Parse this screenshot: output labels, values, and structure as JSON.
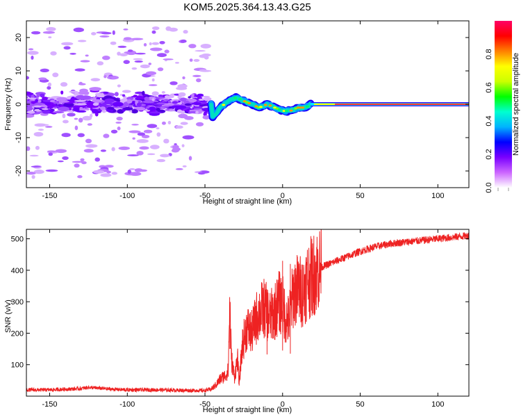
{
  "title": "KOM5.2025.364.13.43.G25",
  "chart_data": [
    {
      "id": "spectrogram",
      "type": "heatmap",
      "xlabel": "Height of straight line (km)",
      "ylabel": "Frequency (Hz)",
      "xlim": [
        -165,
        120
      ],
      "ylim": [
        -25,
        25
      ],
      "xticks": [
        -150,
        -100,
        -50,
        0,
        50,
        100
      ],
      "xtick_labels": [
        "-150",
        "-100",
        "-50",
        "0",
        "50",
        "100"
      ],
      "yticks": [
        -20,
        -10,
        0,
        10,
        20
      ],
      "ytick_labels": [
        "-20",
        "-10",
        "0",
        "10",
        "20"
      ],
      "noise_region": {
        "x_range": [
          -165,
          -48
        ],
        "core_freq_range": [
          -5,
          5
        ],
        "scatter_freq_range": [
          -22,
          23
        ]
      },
      "trace": [
        {
          "x": -45,
          "y": -4
        },
        {
          "x": -40,
          "y": -1
        },
        {
          "x": -35,
          "y": 1
        },
        {
          "x": -30,
          "y": 2
        },
        {
          "x": -25,
          "y": 1
        },
        {
          "x": -20,
          "y": 0
        },
        {
          "x": -15,
          "y": -1
        },
        {
          "x": -10,
          "y": 0
        },
        {
          "x": -5,
          "y": -1
        },
        {
          "x": 0,
          "y": -2
        },
        {
          "x": 5,
          "y": -2
        },
        {
          "x": 10,
          "y": -1
        },
        {
          "x": 15,
          "y": -1
        },
        {
          "x": 18,
          "y": 0
        },
        {
          "x": 25,
          "y": 0
        },
        {
          "x": 120,
          "y": 0
        }
      ],
      "carrier": {
        "x_range": [
          18,
          120
        ],
        "y": 0
      }
    },
    {
      "id": "colorbar",
      "type": "colorbar",
      "label": "Normalized spectral amplitude",
      "range": [
        0,
        1
      ],
      "ticks": [
        0.0,
        0.2,
        0.4,
        0.6,
        0.8
      ],
      "tick_labels": [
        "0.0",
        "0.2",
        "0.4",
        "0.6",
        "0.8"
      ],
      "colormap": [
        "#ffffff",
        "#cc66ff",
        "#7a00ff",
        "#0000ff",
        "#00b3ff",
        "#00ffd0",
        "#00ff00",
        "#ccff00",
        "#ffff00",
        "#ff8000",
        "#ff0000",
        "#ff0066"
      ]
    },
    {
      "id": "snr",
      "type": "line",
      "xlabel": "Height of straight line (km)",
      "ylabel": "SNR (v/v)",
      "xlim": [
        -165,
        120
      ],
      "ylim": [
        0,
        530
      ],
      "xticks": [
        -150,
        -100,
        -50,
        0,
        50,
        100
      ],
      "xtick_labels": [
        "-150",
        "-100",
        "-50",
        "0",
        "50",
        "100"
      ],
      "yticks": [
        100,
        200,
        300,
        400,
        500
      ],
      "ytick_labels": [
        "100",
        "200",
        "300",
        "400",
        "500"
      ],
      "color": "#ee2222",
      "series": [
        {
          "name": "SNR",
          "points": [
            [
              -165,
              20
            ],
            [
              -150,
              20
            ],
            [
              -130,
              24
            ],
            [
              -125,
              28
            ],
            [
              -110,
              22
            ],
            [
              -100,
              20
            ],
            [
              -80,
              20
            ],
            [
              -60,
              18
            ],
            [
              -50,
              18
            ],
            [
              -46,
              22
            ],
            [
              -43,
              35
            ],
            [
              -40,
              55
            ],
            [
              -37,
              65
            ],
            [
              -35,
              80
            ],
            [
              -34,
              300
            ],
            [
              -33,
              120
            ],
            [
              -31,
              60
            ],
            [
              -29,
              120
            ],
            [
              -28,
              40
            ],
            [
              -26,
              160
            ],
            [
              -23,
              220
            ],
            [
              -20,
              200
            ],
            [
              -16,
              260
            ],
            [
              -12,
              280
            ],
            [
              -8,
              250
            ],
            [
              -5,
              270
            ],
            [
              -2,
              300
            ],
            [
              0,
              290
            ],
            [
              2,
              250
            ],
            [
              4,
              240
            ],
            [
              7,
              330
            ],
            [
              10,
              340
            ],
            [
              13,
              330
            ],
            [
              16,
              370
            ],
            [
              19,
              380
            ],
            [
              22,
              400
            ],
            [
              25,
              410
            ],
            [
              30,
              420
            ],
            [
              40,
              440
            ],
            [
              50,
              460
            ],
            [
              60,
              475
            ],
            [
              70,
              485
            ],
            [
              80,
              490
            ],
            [
              90,
              495
            ],
            [
              100,
              500
            ],
            [
              110,
              505
            ],
            [
              120,
              510
            ]
          ]
        }
      ],
      "spikes": [
        [
          -34,
          300
        ],
        [
          0,
          430
        ],
        [
          5,
          420
        ],
        [
          -10,
          330
        ]
      ]
    }
  ]
}
